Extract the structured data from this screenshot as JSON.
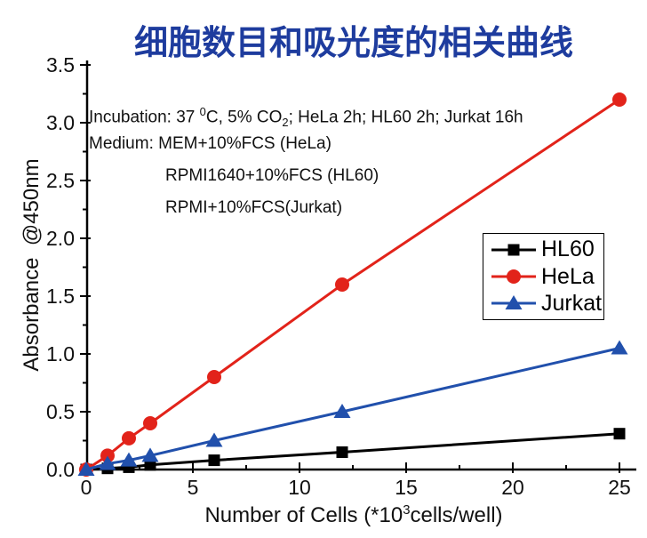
{
  "title": "细胞数目和吸光度的相关曲线",
  "annotation": {
    "incubation": {
      "pre": "Incubation: 37 ",
      "sup": "0",
      "mid": "C, 5% CO",
      "sub": "2",
      "post": "; HeLa 2h; HL60 2h; Jurkat 16h"
    },
    "medium_line1": "Medium: MEM+10%FCS (HeLa)",
    "medium_line2": "RPMI1640+10%FCS (HL60)",
    "medium_line3": "RPMI+10%FCS(Jurkat)"
  },
  "chart_data": {
    "type": "line",
    "x": [
      0,
      1,
      2,
      3,
      6,
      12,
      25
    ],
    "series": [
      {
        "name": "HL60",
        "color": "#000000",
        "marker": "square",
        "values": [
          0,
          0.01,
          0.02,
          0.04,
          0.08,
          0.15,
          0.31
        ]
      },
      {
        "name": "HeLa",
        "color": "#e2231a",
        "marker": "circle",
        "values": [
          0,
          0.12,
          0.27,
          0.4,
          0.8,
          1.6,
          3.2
        ]
      },
      {
        "name": "Jurkat",
        "color": "#2150ac",
        "marker": "triangle",
        "values": [
          0,
          0.05,
          0.08,
          0.12,
          0.25,
          0.5,
          1.05
        ]
      }
    ],
    "xlabel": {
      "pre": "Number of Cells (*10",
      "sup": "3",
      "post": "cells/well)"
    },
    "ylabel": "Absorbance  @450nm",
    "xlim": [
      0,
      25.8
    ],
    "ylim": [
      0,
      3.54
    ],
    "x_ticks": [
      0,
      5,
      10,
      15,
      20,
      25
    ],
    "x_minor_ticks": [
      2.5,
      7.5,
      12.5,
      17.5,
      22.5
    ],
    "y_ticks": [
      "0.0",
      "0.5",
      "1.0",
      "1.5",
      "2.0",
      "2.5",
      "3.0",
      "3.5"
    ],
    "y_minor_step": 0.25,
    "legend": [
      "HL60",
      "HeLa",
      "Jurkat"
    ],
    "legend_position": "right-center",
    "grid": false,
    "title_color": "#1e3c9e",
    "axis_color": "#000000"
  }
}
